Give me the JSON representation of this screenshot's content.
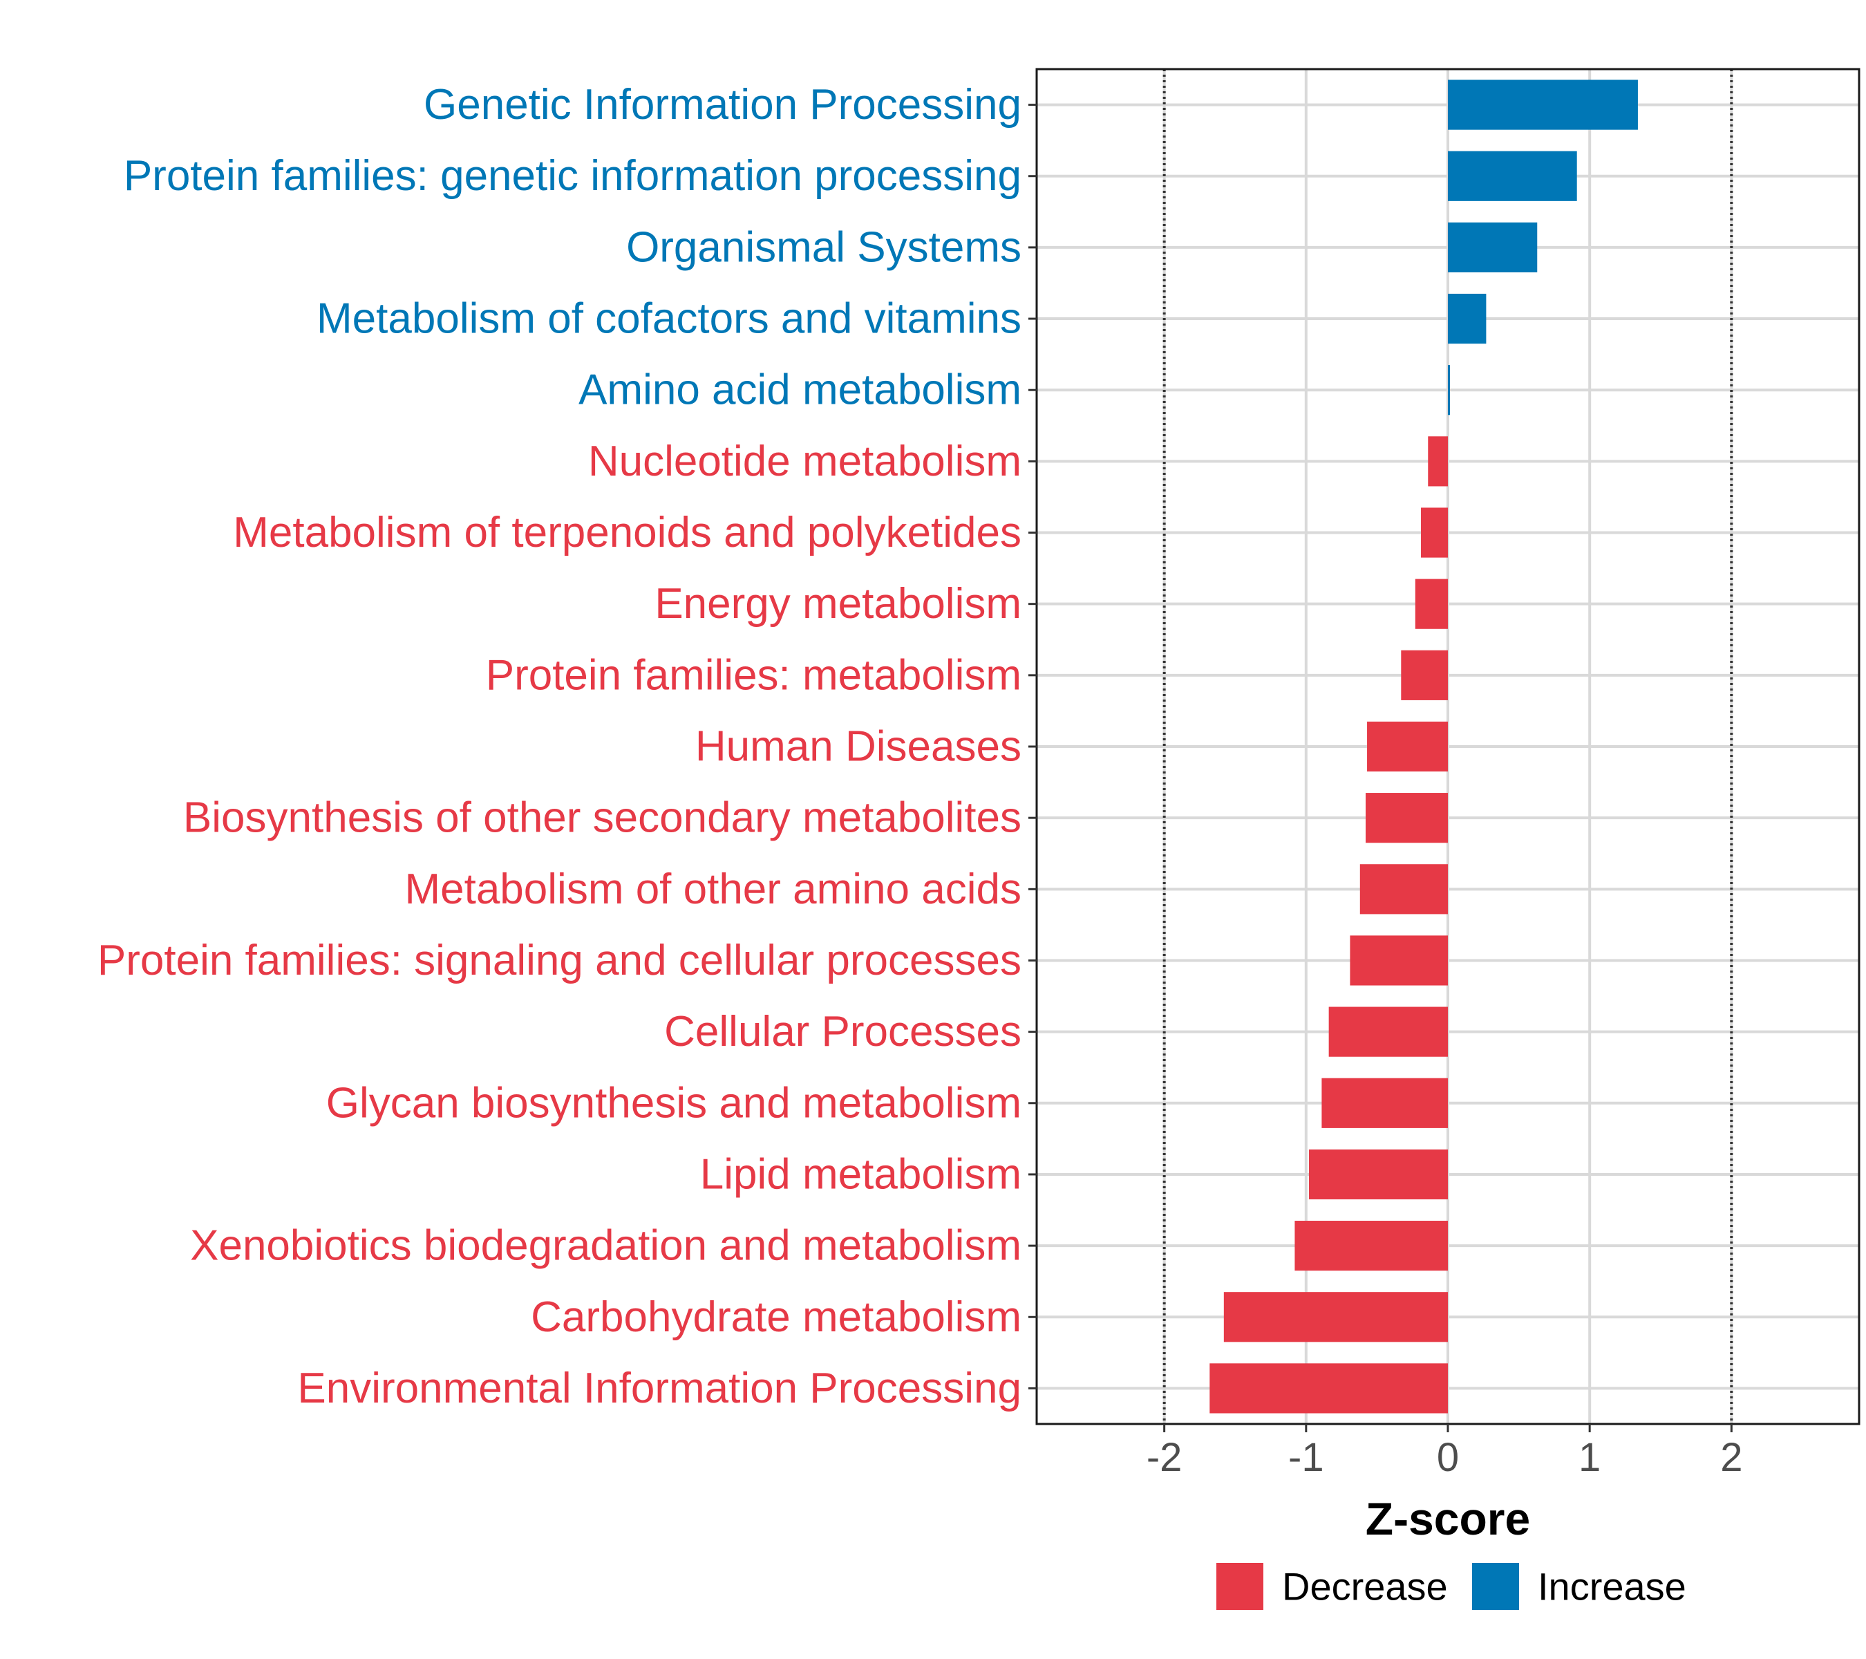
{
  "chart_data": {
    "type": "bar",
    "orientation": "horizontal",
    "title": "",
    "xlabel": "Z-score",
    "ylabel": "",
    "xlim": [
      -2.9,
      2.9
    ],
    "x_ticks": [
      -2,
      -1,
      0,
      1,
      2
    ],
    "x_tick_labels": [
      "-2",
      "-1",
      "0",
      "1",
      "2"
    ],
    "reference_lines": [
      -2,
      2
    ],
    "grid": true,
    "legend_position": "bottom",
    "legend": [
      {
        "key": "decrease",
        "label": "Decrease",
        "color": "#E63946"
      },
      {
        "key": "increase",
        "label": "Increase",
        "color": "#0077B6"
      }
    ],
    "categories": [
      "Genetic Information Processing",
      "Protein families: genetic information processing",
      "Organismal Systems",
      "Metabolism of cofactors and vitamins",
      "Amino acid metabolism",
      "Nucleotide metabolism",
      "Metabolism of terpenoids and polyketides",
      "Energy metabolism",
      "Protein families: metabolism",
      "Human Diseases",
      "Biosynthesis of other secondary metabolites",
      "Metabolism of other amino acids",
      "Protein families: signaling and cellular processes",
      "Cellular Processes",
      "Glycan biosynthesis and metabolism",
      "Lipid metabolism",
      "Xenobiotics biodegradation and metabolism",
      "Carbohydrate metabolism",
      "Environmental Information Processing"
    ],
    "values": [
      1.34,
      0.91,
      0.63,
      0.27,
      0.01,
      -0.14,
      -0.19,
      -0.23,
      -0.33,
      -0.57,
      -0.58,
      -0.62,
      -0.69,
      -0.84,
      -0.89,
      -0.98,
      -1.08,
      -1.58,
      -1.68
    ],
    "groups": [
      "increase",
      "increase",
      "increase",
      "increase",
      "increase",
      "decrease",
      "decrease",
      "decrease",
      "decrease",
      "decrease",
      "decrease",
      "decrease",
      "decrease",
      "decrease",
      "decrease",
      "decrease",
      "decrease",
      "decrease",
      "decrease"
    ]
  }
}
